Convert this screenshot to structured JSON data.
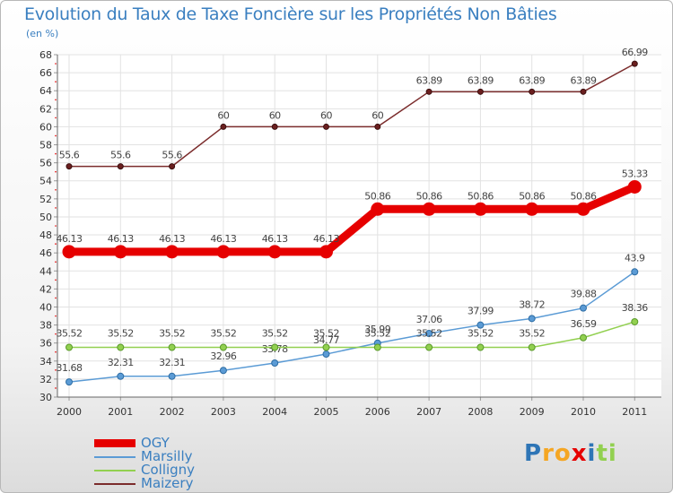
{
  "chart_data": {
    "type": "line",
    "title": "Evolution du Taux de Taxe Foncière sur les Propriétés Non Bâties",
    "ylabel": "(en %)",
    "xlabel": "",
    "categories": [
      "2000",
      "2001",
      "2002",
      "2003",
      "2004",
      "2005",
      "2006",
      "2007",
      "2008",
      "2009",
      "2010",
      "2011"
    ],
    "ylim": [
      30,
      68
    ],
    "yticks": [
      30,
      32,
      34,
      36,
      38,
      40,
      42,
      44,
      46,
      48,
      50,
      52,
      54,
      56,
      58,
      60,
      62,
      64,
      66,
      68
    ],
    "legend_position": "bottom-left",
    "series": [
      {
        "name": "OGY",
        "color": "#e60000",
        "values": [
          46.13,
          46.13,
          46.13,
          46.13,
          46.13,
          46.13,
          50.86,
          50.86,
          50.86,
          50.86,
          50.86,
          53.33
        ],
        "labels": [
          "46.13",
          "46.13",
          "46.13",
          "46.13",
          "46.13",
          "46.13",
          "50.86",
          "50.86",
          "50.86",
          "50.86",
          "50.86",
          "53.33"
        ]
      },
      {
        "name": "Marsilly",
        "color": "#5b9bd5",
        "values": [
          31.68,
          32.31,
          32.31,
          32.96,
          33.78,
          34.77,
          35.99,
          37.06,
          37.99,
          38.72,
          39.88,
          43.9
        ],
        "labels": [
          "31.68",
          "32.31",
          "32.31",
          "32.96",
          "33.78",
          "34.77",
          "35.99",
          "37.06",
          "37.99",
          "38.72",
          "39.88",
          "43.9"
        ]
      },
      {
        "name": "Colligny",
        "color": "#92d050",
        "values": [
          35.52,
          35.52,
          35.52,
          35.52,
          35.52,
          35.52,
          35.52,
          35.52,
          35.52,
          35.52,
          36.59,
          38.36
        ],
        "labels": [
          "35.52",
          "35.52",
          "35.52",
          "35.52",
          "35.52",
          "35.52",
          "35.52",
          "35.52",
          "35.52",
          "35.52",
          "36.59",
          "38.36"
        ]
      },
      {
        "name": "Maizery",
        "color": "#7b2c2c",
        "values": [
          55.6,
          55.6,
          55.6,
          60,
          60,
          60,
          60,
          63.89,
          63.89,
          63.89,
          63.89,
          66.99
        ],
        "labels": [
          "55.6",
          "55.6",
          "55.6",
          "60",
          "60",
          "60",
          "60",
          "63.89",
          "63.89",
          "63.89",
          "63.89",
          "66.99"
        ]
      }
    ]
  },
  "brand": {
    "logo_text": "Proxiti"
  }
}
